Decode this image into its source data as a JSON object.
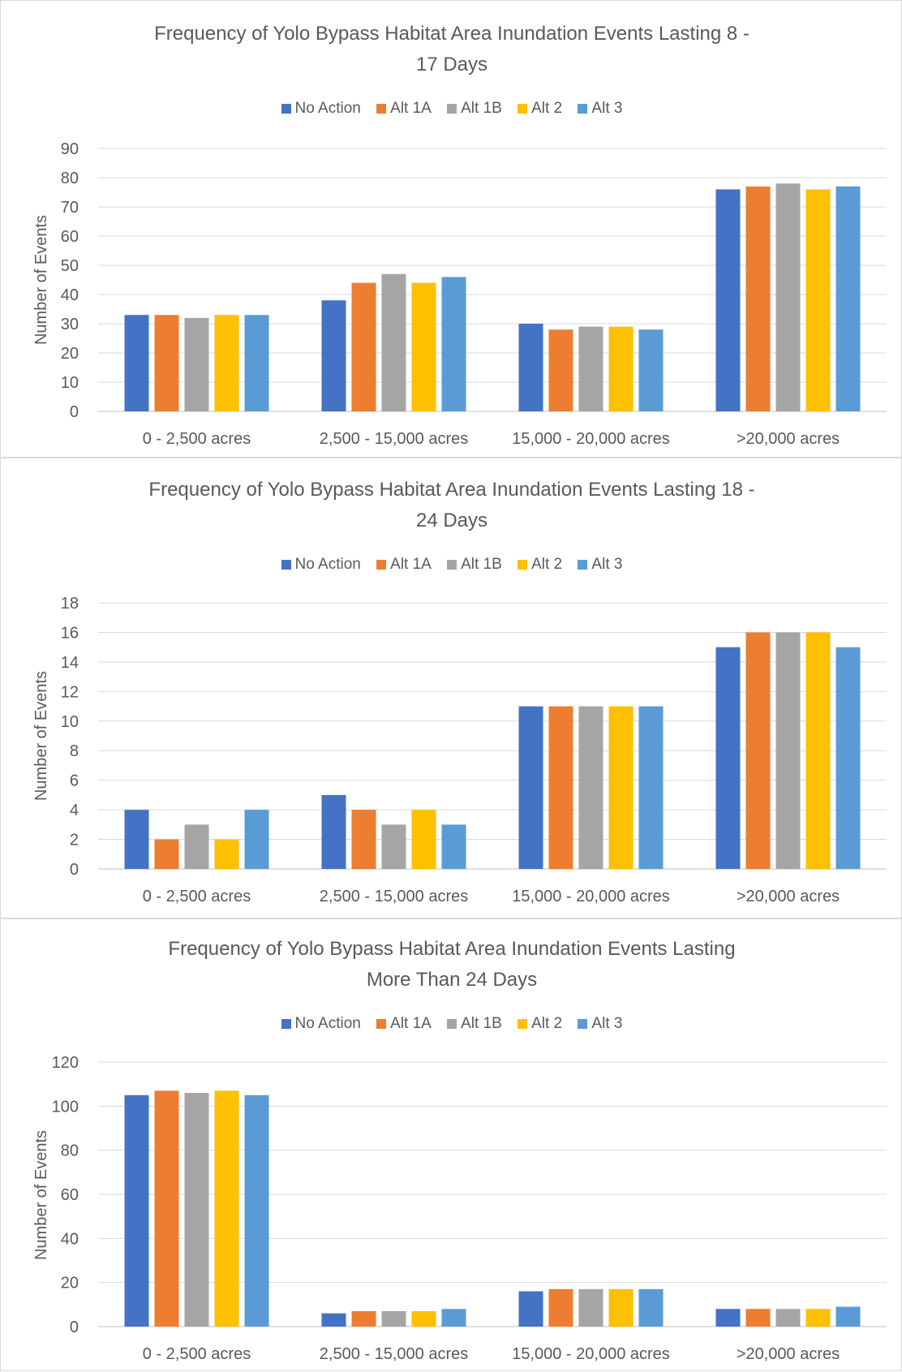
{
  "series_colors": [
    "#4472C4",
    "#ED7D31",
    "#A5A5A5",
    "#FFC000",
    "#5B9BD5"
  ],
  "chart_data": [
    {
      "type": "bar",
      "title_line1": "Frequency of Yolo Bypass Habitat Area Inundation Events Lasting 8 -",
      "title_line2": "17 Days",
      "ylabel": "Number of Events",
      "xlabel": "",
      "ylim": [
        0,
        90
      ],
      "ystep": 10,
      "yticks": [
        "0",
        "10",
        "20",
        "30",
        "40",
        "50",
        "60",
        "70",
        "80",
        "90"
      ],
      "legend_position": "top",
      "grid": true,
      "categories": [
        "0 - 2,500 acres",
        "2,500 - 15,000 acres",
        "15,000 - 20,000 acres",
        ">20,000 acres"
      ],
      "series": [
        {
          "name": "No Action",
          "values": [
            33,
            38,
            30,
            76
          ]
        },
        {
          "name": "Alt 1A",
          "values": [
            33,
            44,
            28,
            77
          ]
        },
        {
          "name": "Alt 1B",
          "values": [
            32,
            47,
            29,
            78
          ]
        },
        {
          "name": "Alt 2",
          "values": [
            33,
            44,
            29,
            76
          ]
        },
        {
          "name": "Alt 3",
          "values": [
            33,
            46,
            28,
            77
          ]
        }
      ]
    },
    {
      "type": "bar",
      "title_line1": "Frequency of Yolo Bypass Habitat Area Inundation Events Lasting 18 -",
      "title_line2": "24 Days",
      "ylabel": "Number of Events",
      "xlabel": "",
      "ylim": [
        0,
        18
      ],
      "ystep": 2,
      "yticks": [
        "0",
        "2",
        "4",
        "6",
        "8",
        "10",
        "12",
        "14",
        "16",
        "18"
      ],
      "legend_position": "top",
      "grid": true,
      "categories": [
        "0 - 2,500 acres",
        "2,500 - 15,000 acres",
        "15,000 - 20,000 acres",
        ">20,000 acres"
      ],
      "series": [
        {
          "name": "No Action",
          "values": [
            4,
            5,
            11,
            15
          ]
        },
        {
          "name": "Alt 1A",
          "values": [
            2,
            4,
            11,
            16
          ]
        },
        {
          "name": "Alt 1B",
          "values": [
            3,
            3,
            11,
            16
          ]
        },
        {
          "name": "Alt 2",
          "values": [
            2,
            4,
            11,
            16
          ]
        },
        {
          "name": "Alt 3",
          "values": [
            4,
            3,
            11,
            15
          ]
        }
      ]
    },
    {
      "type": "bar",
      "title_line1": "Frequency of Yolo Bypass Habitat Area Inundation Events Lasting",
      "title_line2": "More Than 24 Days",
      "ylabel": "Number of Events",
      "xlabel": "",
      "ylim": [
        0,
        120
      ],
      "ystep": 20,
      "yticks": [
        "0",
        "20",
        "40",
        "60",
        "80",
        "100",
        "120"
      ],
      "legend_position": "top",
      "grid": true,
      "categories": [
        "0 - 2,500 acres",
        "2,500 - 15,000 acres",
        "15,000 - 20,000 acres",
        ">20,000 acres"
      ],
      "series": [
        {
          "name": "No Action",
          "values": [
            105,
            6,
            16,
            8
          ]
        },
        {
          "name": "Alt 1A",
          "values": [
            107,
            7,
            17,
            8
          ]
        },
        {
          "name": "Alt 1B",
          "values": [
            106,
            7,
            17,
            8
          ]
        },
        {
          "name": "Alt 2",
          "values": [
            107,
            7,
            17,
            8
          ]
        },
        {
          "name": "Alt 3",
          "values": [
            105,
            8,
            17,
            9
          ]
        }
      ]
    }
  ]
}
